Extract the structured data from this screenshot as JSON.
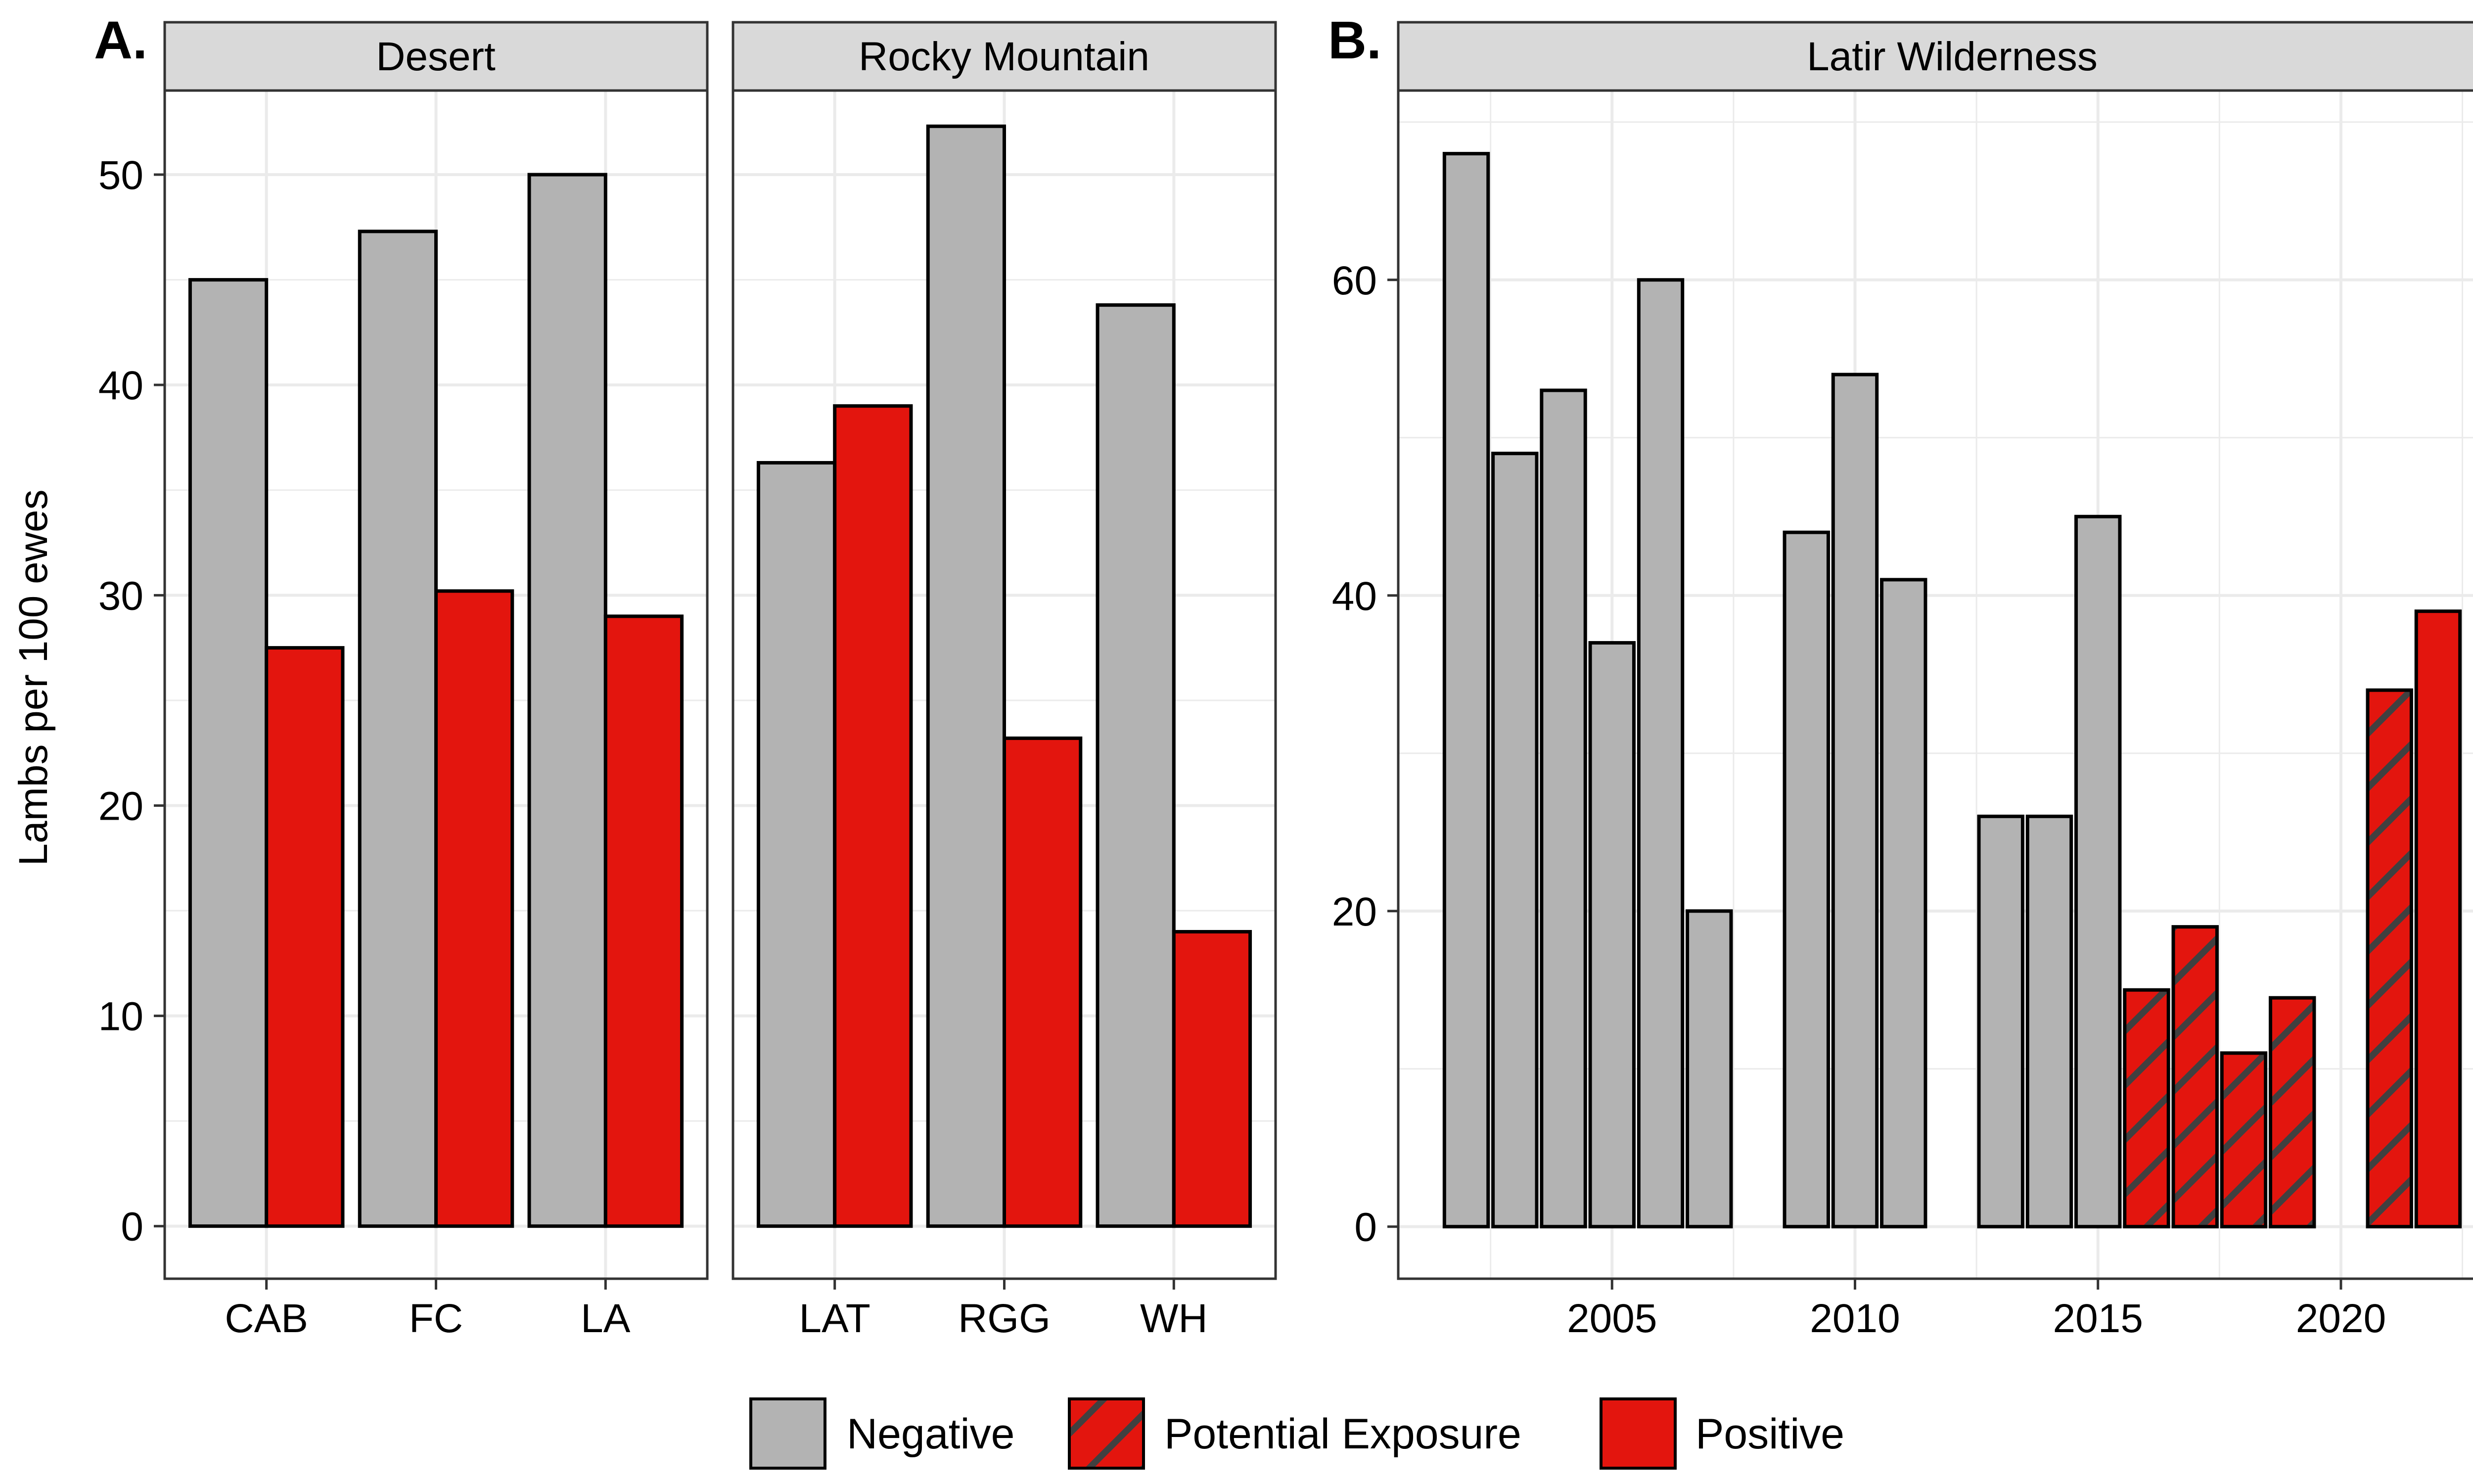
{
  "colors": {
    "negative": "#B3B3B3",
    "potential_exposure": "#E3150E",
    "positive": "#E3150E",
    "hatch": "#404040",
    "strip_fill": "#D9D9D9",
    "grid": "#EBEBEB",
    "frame": "#333333"
  },
  "ylabel": "Lambs per 100 ewes",
  "legend": {
    "position": "bottom",
    "items": [
      {
        "key": "negative",
        "label": "Negative"
      },
      {
        "key": "potential_exposure",
        "label": "Potential Exposure"
      },
      {
        "key": "positive",
        "label": "Positive"
      }
    ]
  },
  "chart_data": [
    {
      "type": "bar",
      "panel_label": "A.",
      "ylim": [
        -2.5,
        54
      ],
      "yticks": [
        0,
        10,
        20,
        30,
        40,
        50
      ],
      "facets": [
        {
          "strip": "Desert",
          "categories": [
            "CAB",
            "FC",
            "LA"
          ],
          "series": [
            {
              "key": "negative",
              "values": [
                45.0,
                47.3,
                50.0
              ]
            },
            {
              "key": "positive",
              "values": [
                27.5,
                30.2,
                29.0
              ]
            }
          ]
        },
        {
          "strip": "Rocky Mountain",
          "categories": [
            "LAT",
            "RGG",
            "WH"
          ],
          "series": [
            {
              "key": "negative",
              "values": [
                36.3,
                52.3,
                43.8
              ]
            },
            {
              "key": "positive",
              "values": [
                39.0,
                23.2,
                14.0
              ]
            }
          ]
        }
      ]
    },
    {
      "type": "bar",
      "panel_label": "B.",
      "strip": "Latir Wilderness",
      "xlim": [
        2000.6,
        2023.4
      ],
      "xticks": [
        2005,
        2010,
        2015,
        2020
      ],
      "ylim": [
        -3.3,
        72
      ],
      "yticks": [
        0,
        20,
        40,
        60
      ],
      "bars": [
        {
          "x": 2002,
          "value": 68,
          "status": "negative"
        },
        {
          "x": 2003,
          "value": 49,
          "status": "negative"
        },
        {
          "x": 2004,
          "value": 53,
          "status": "negative"
        },
        {
          "x": 2005,
          "value": 37,
          "status": "negative"
        },
        {
          "x": 2006,
          "value": 60,
          "status": "negative"
        },
        {
          "x": 2007,
          "value": 20,
          "status": "negative"
        },
        {
          "x": 2009,
          "value": 44,
          "status": "negative"
        },
        {
          "x": 2010,
          "value": 54,
          "status": "negative"
        },
        {
          "x": 2011,
          "value": 41,
          "status": "negative"
        },
        {
          "x": 2013,
          "value": 26,
          "status": "negative"
        },
        {
          "x": 2014,
          "value": 26,
          "status": "negative"
        },
        {
          "x": 2015,
          "value": 45,
          "status": "negative"
        },
        {
          "x": 2016,
          "value": 15,
          "status": "potential_exposure"
        },
        {
          "x": 2017,
          "value": 19,
          "status": "potential_exposure"
        },
        {
          "x": 2018,
          "value": 11,
          "status": "potential_exposure"
        },
        {
          "x": 2019,
          "value": 14.5,
          "status": "potential_exposure"
        },
        {
          "x": 2021,
          "value": 34,
          "status": "potential_exposure"
        },
        {
          "x": 2022,
          "value": 39,
          "status": "positive"
        }
      ]
    }
  ]
}
